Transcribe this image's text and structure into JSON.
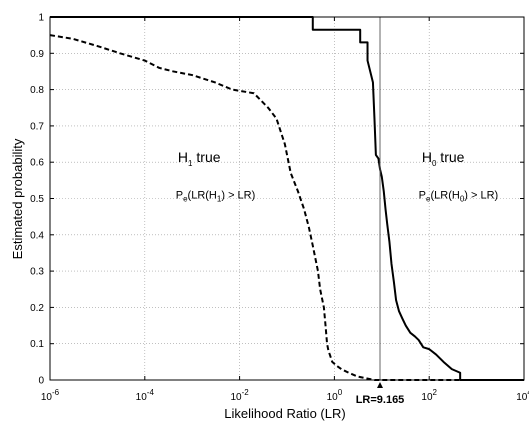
{
  "chart_data": {
    "type": "line",
    "xlabel": "Likelihood Ratio (LR)",
    "ylabel": "Estimated probability",
    "xscale": "log",
    "xlim": [
      1e-06,
      10000
    ],
    "ylim": [
      0,
      1
    ],
    "grid": true,
    "x_tick_labels": [
      "10",
      "10",
      "10",
      "10",
      "10",
      "10"
    ],
    "x_tick_exponents": [
      "-6",
      "-4",
      "-2",
      "0",
      "2",
      "4"
    ],
    "y_ticks": [
      0,
      0.1,
      0.2,
      0.3,
      0.4,
      0.5,
      0.6,
      0.7,
      0.8,
      0.9,
      1
    ],
    "y_tick_labels": [
      "0",
      "0.1",
      "0.2",
      "0.3",
      "0.4",
      "0.5",
      "0.6",
      "0.7",
      "0.8",
      "0.9",
      "1"
    ],
    "series": [
      {
        "style": "solid",
        "color": "#000000",
        "x": [
          1e-06,
          0.35,
          0.35,
          3.5,
          3.5,
          5,
          5,
          6.5,
          7,
          7.5,
          8.5,
          9.2,
          10,
          11,
          12,
          13,
          14.5,
          16,
          18,
          20,
          23,
          27,
          32,
          40,
          50,
          60,
          75,
          100,
          140,
          200,
          300,
          450,
          450,
          10000
        ],
        "y": [
          1,
          1,
          0.965,
          0.965,
          0.93,
          0.93,
          0.88,
          0.82,
          0.72,
          0.62,
          0.61,
          0.58,
          0.56,
          0.52,
          0.47,
          0.43,
          0.38,
          0.32,
          0.27,
          0.22,
          0.19,
          0.17,
          0.15,
          0.13,
          0.12,
          0.11,
          0.09,
          0.085,
          0.07,
          0.05,
          0.03,
          0.02,
          0,
          0
        ]
      },
      {
        "style": "dashed",
        "color": "#000000",
        "x": [
          1e-06,
          3e-06,
          1e-05,
          3e-05,
          0.0001,
          0.0002,
          0.0004,
          0.001,
          0.003,
          0.007,
          0.02,
          0.04,
          0.06,
          0.09,
          0.12,
          0.17,
          0.23,
          0.29,
          0.35,
          0.45,
          0.5,
          0.6,
          0.65,
          0.7,
          0.75,
          0.8,
          0.9,
          1.1,
          1.4,
          2,
          3,
          4.5,
          7,
          10000
        ],
        "y": [
          0.95,
          0.94,
          0.92,
          0.9,
          0.88,
          0.86,
          0.85,
          0.84,
          0.82,
          0.8,
          0.79,
          0.75,
          0.72,
          0.65,
          0.57,
          0.52,
          0.47,
          0.42,
          0.37,
          0.3,
          0.25,
          0.2,
          0.15,
          0.1,
          0.08,
          0.07,
          0.05,
          0.04,
          0.03,
          0.02,
          0.01,
          0.005,
          0,
          0
        ]
      }
    ],
    "vline": {
      "x": 9.165,
      "label": "LR=9.165"
    },
    "annotations": [
      {
        "main": "H",
        "sub": "1",
        "rest": " true",
        "x": 0.0005,
        "y": 0.6
      },
      {
        "main": "H",
        "sub": "0",
        "rest": " true",
        "x": 70,
        "y": 0.6
      },
      {
        "pre": "P",
        "pre_sub": "e",
        "mid": "(LR(H",
        "mid_sub": "1",
        "post": ") > LR)",
        "x": 0.00045,
        "y": 0.5
      },
      {
        "pre": "P",
        "pre_sub": "e",
        "mid": "(LR(H",
        "mid_sub": "0",
        "post": ") > LR)",
        "x": 60,
        "y": 0.5
      }
    ]
  }
}
